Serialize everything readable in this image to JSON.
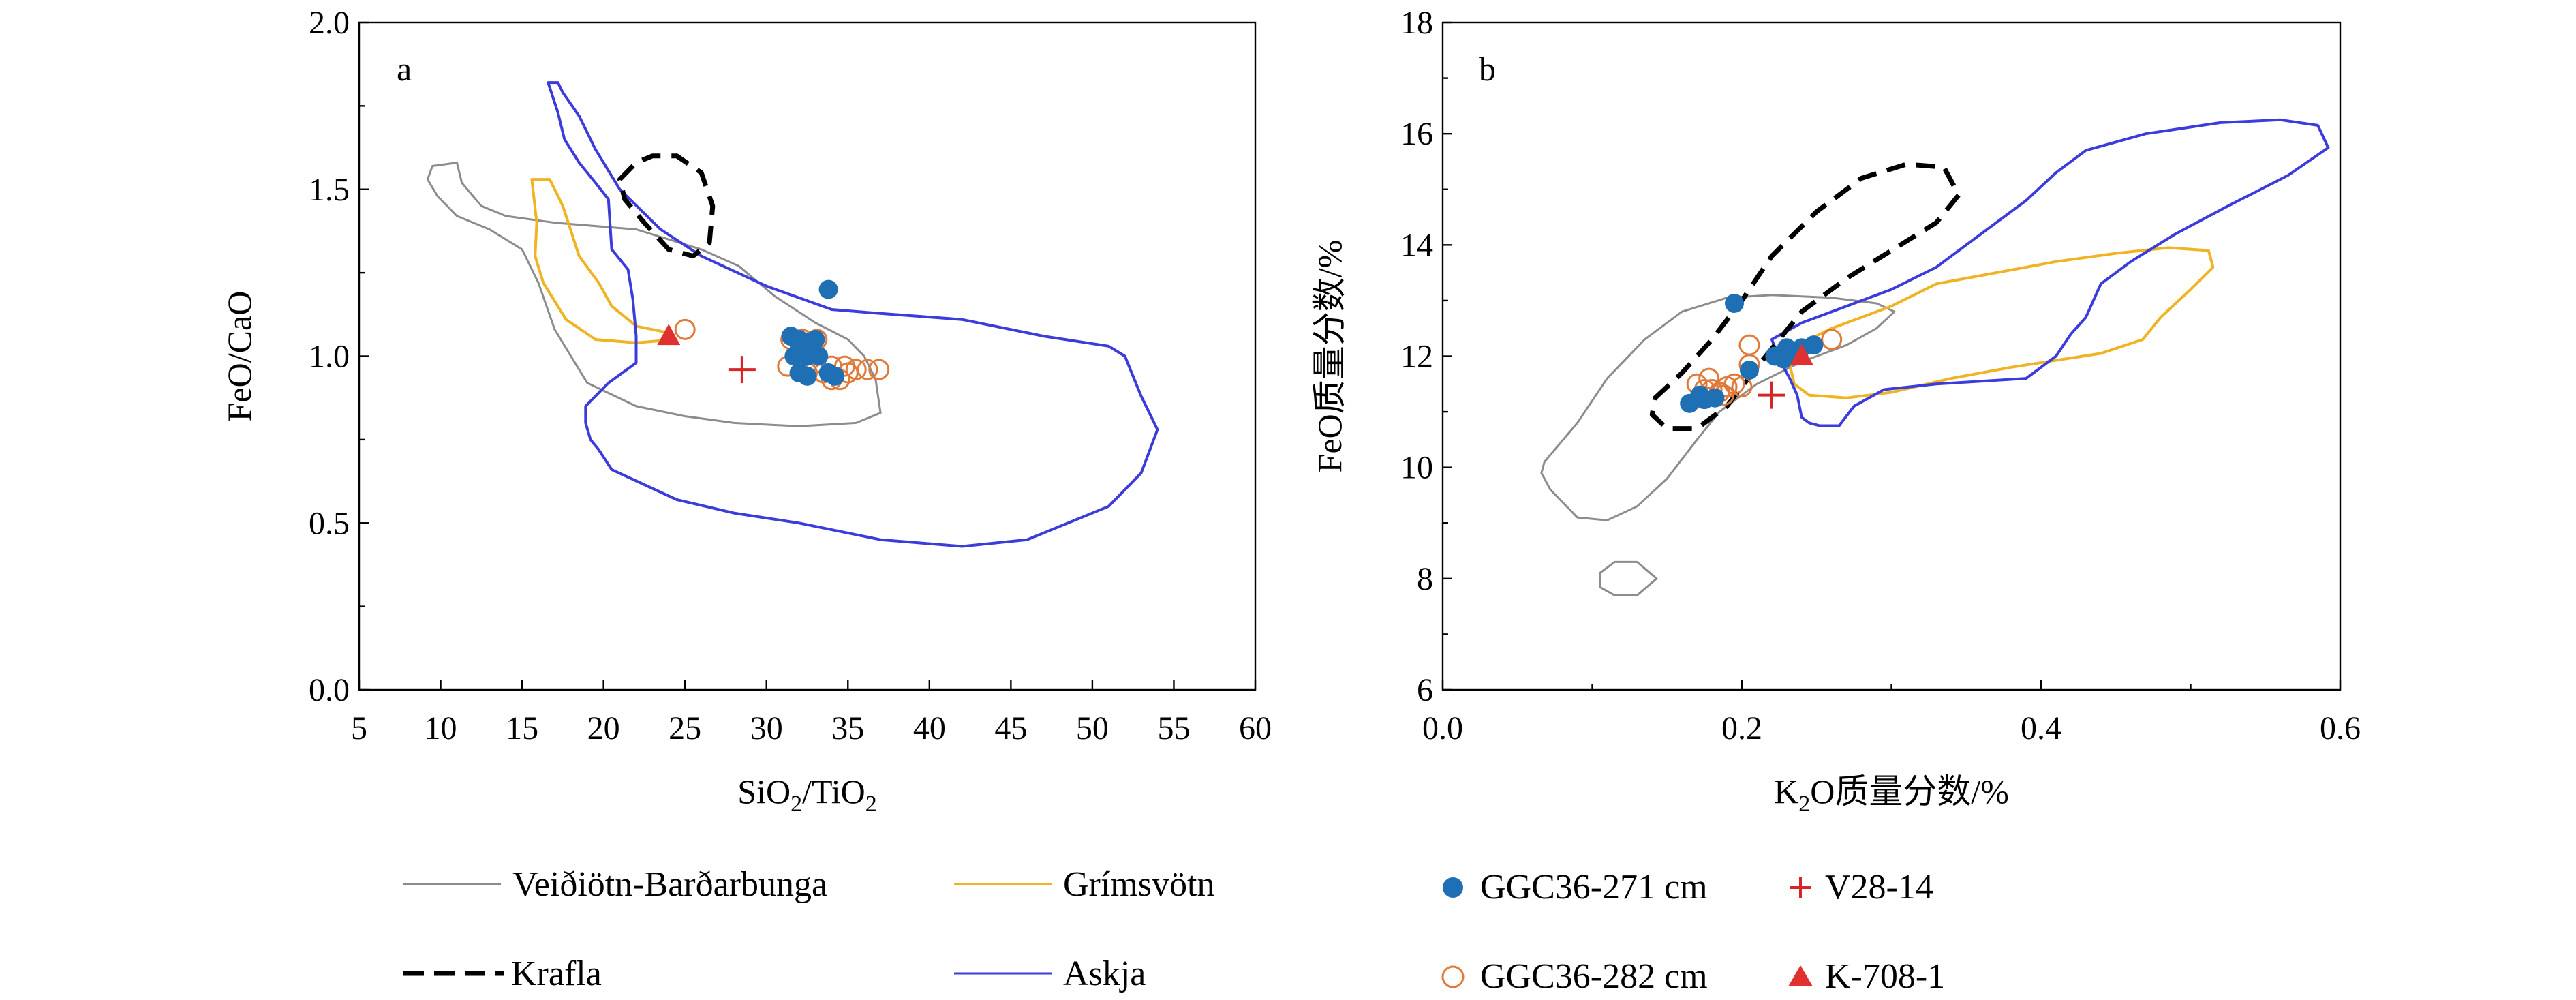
{
  "colors": {
    "veidivotn": "#8c8c8c",
    "grimsvotn": "#f0b323",
    "askja": "#3c3cdc",
    "krafla": "#000000",
    "filled_circle": "#1f6fb4",
    "open_circle": "#e07a3a",
    "v28": "#d62728",
    "k708": "#e03030"
  },
  "chart_data": [
    {
      "type": "scatter",
      "panel": "a",
      "xlabel_main": "SiO",
      "xlabel_sub1": "2",
      "xlabel_mid": "/TiO",
      "xlabel_sub2": "2",
      "ylabel": "FeO/CaO",
      "xlim": [
        5,
        60
      ],
      "ylim": [
        0,
        2
      ],
      "xticks": [
        5,
        10,
        15,
        20,
        25,
        30,
        35,
        40,
        45,
        50,
        55,
        60
      ],
      "yticks": [
        0.0,
        0.5,
        1.0,
        1.5,
        2.0
      ],
      "xtick_labels": [
        "5",
        "10",
        "15",
        "20",
        "25",
        "30",
        "35",
        "40",
        "45",
        "50",
        "55",
        "60"
      ],
      "ytick_labels": [
        "0.0",
        "0.5",
        "1.0",
        "1.5",
        "2.0"
      ],
      "fields": {
        "veidivotn": [
          [
            9.5,
            1.57
          ],
          [
            11,
            1.58
          ],
          [
            11.3,
            1.52
          ],
          [
            12.5,
            1.45
          ],
          [
            14,
            1.42
          ],
          [
            17,
            1.4
          ],
          [
            22,
            1.38
          ],
          [
            24,
            1.35
          ],
          [
            26,
            1.32
          ],
          [
            28.3,
            1.27
          ],
          [
            30.5,
            1.18
          ],
          [
            33,
            1.1
          ],
          [
            35,
            1.05
          ],
          [
            36,
            1.0
          ],
          [
            36.7,
            0.93
          ],
          [
            37,
            0.83
          ],
          [
            35.5,
            0.8
          ],
          [
            32,
            0.79
          ],
          [
            28,
            0.8
          ],
          [
            25,
            0.82
          ],
          [
            22,
            0.85
          ],
          [
            19,
            0.92
          ],
          [
            17,
            1.08
          ],
          [
            16,
            1.22
          ],
          [
            15,
            1.32
          ],
          [
            13,
            1.38
          ],
          [
            11,
            1.42
          ],
          [
            9.8,
            1.48
          ],
          [
            9.2,
            1.53
          ],
          [
            9.5,
            1.57
          ]
        ],
        "grimsvotn": [
          [
            15.6,
            1.53
          ],
          [
            16.7,
            1.53
          ],
          [
            17.5,
            1.45
          ],
          [
            18.5,
            1.3
          ],
          [
            19.7,
            1.22
          ],
          [
            20.5,
            1.15
          ],
          [
            22,
            1.09
          ],
          [
            24,
            1.07
          ],
          [
            24.4,
            1.05
          ],
          [
            22,
            1.04
          ],
          [
            19.5,
            1.05
          ],
          [
            17.7,
            1.11
          ],
          [
            16.3,
            1.22
          ],
          [
            15.8,
            1.3
          ],
          [
            15.9,
            1.4
          ],
          [
            15.6,
            1.53
          ]
        ],
        "askja": [
          [
            16.6,
            1.82
          ],
          [
            17.2,
            1.82
          ],
          [
            17.5,
            1.79
          ],
          [
            18.5,
            1.72
          ],
          [
            19.5,
            1.62
          ],
          [
            21,
            1.5
          ],
          [
            23.5,
            1.38
          ],
          [
            26,
            1.3
          ],
          [
            30,
            1.21
          ],
          [
            34,
            1.14
          ],
          [
            36.5,
            1.13
          ],
          [
            42,
            1.11
          ],
          [
            47,
            1.06
          ],
          [
            51,
            1.03
          ],
          [
            52,
            1.0
          ],
          [
            53,
            0.88
          ],
          [
            54,
            0.78
          ],
          [
            53,
            0.65
          ],
          [
            51,
            0.55
          ],
          [
            46,
            0.45
          ],
          [
            42,
            0.43
          ],
          [
            37,
            0.45
          ],
          [
            32,
            0.5
          ],
          [
            28,
            0.53
          ],
          [
            24.5,
            0.57
          ],
          [
            20.5,
            0.66
          ],
          [
            19.7,
            0.72
          ],
          [
            19.2,
            0.75
          ],
          [
            18.9,
            0.8
          ],
          [
            18.9,
            0.85
          ],
          [
            20.3,
            0.92
          ],
          [
            22,
            0.98
          ],
          [
            22,
            1.06
          ],
          [
            21.8,
            1.17
          ],
          [
            21.5,
            1.26
          ],
          [
            20.5,
            1.32
          ],
          [
            20.3,
            1.47
          ],
          [
            19.5,
            1.52
          ],
          [
            18.5,
            1.58
          ],
          [
            17.6,
            1.65
          ],
          [
            17.2,
            1.73
          ],
          [
            16.6,
            1.82
          ]
        ],
        "krafla": [
          [
            21,
            1.53
          ],
          [
            22,
            1.58
          ],
          [
            23,
            1.6
          ],
          [
            24.5,
            1.6
          ],
          [
            26,
            1.55
          ],
          [
            26.7,
            1.45
          ],
          [
            26.5,
            1.34
          ],
          [
            25.5,
            1.3
          ],
          [
            24,
            1.32
          ],
          [
            22.5,
            1.4
          ],
          [
            21.3,
            1.47
          ],
          [
            21,
            1.53
          ]
        ]
      },
      "filled_circles": [
        [
          31.5,
          1.06
        ],
        [
          32,
          1.05
        ],
        [
          32.5,
          1.04
        ],
        [
          33,
          1.05
        ],
        [
          32,
          1.02
        ],
        [
          31.7,
          1.0
        ],
        [
          32.5,
          1.0
        ],
        [
          33.2,
          1.0
        ],
        [
          32,
          0.95
        ],
        [
          32.5,
          0.94
        ],
        [
          33.8,
          1.2
        ],
        [
          34.2,
          0.94
        ],
        [
          33.8,
          0.95
        ]
      ],
      "open_circles": [
        [
          25,
          1.08
        ],
        [
          31.5,
          1.05
        ],
        [
          32.2,
          1.05
        ],
        [
          33.1,
          1.05
        ],
        [
          32,
          1.0
        ],
        [
          33,
          0.98
        ],
        [
          34,
          0.97
        ],
        [
          34.8,
          0.97
        ],
        [
          35.5,
          0.96
        ],
        [
          36.2,
          0.96
        ],
        [
          36.9,
          0.96
        ],
        [
          33.5,
          0.95
        ],
        [
          34.5,
          0.93
        ],
        [
          32.5,
          0.95
        ],
        [
          31.3,
          0.97
        ],
        [
          34,
          0.93
        ],
        [
          35,
          0.95
        ]
      ],
      "plus": [
        [
          28.5,
          0.96
        ]
      ],
      "triangles": [
        [
          24,
          1.06
        ]
      ]
    },
    {
      "type": "scatter",
      "panel": "b",
      "xlabel_main": "K",
      "xlabel_sub1": "2",
      "xlabel_mid": "O质量分数/%",
      "ylabel": "FeO质量分数/%",
      "xlim": [
        0,
        0.6
      ],
      "ylim": [
        6,
        18
      ],
      "xticks": [
        0.0,
        0.2,
        0.4,
        0.6
      ],
      "yticks": [
        6,
        8,
        10,
        12,
        14,
        16,
        18
      ],
      "xtick_labels": [
        "0.0",
        "0.2",
        "0.4",
        "0.6"
      ],
      "ytick_labels": [
        "6",
        "8",
        "10",
        "12",
        "14",
        "16",
        "18"
      ],
      "fields": {
        "veidivotn": [
          [
            0.068,
            10.1
          ],
          [
            0.09,
            10.8
          ],
          [
            0.11,
            11.6
          ],
          [
            0.135,
            12.3
          ],
          [
            0.16,
            12.8
          ],
          [
            0.19,
            13.05
          ],
          [
            0.22,
            13.1
          ],
          [
            0.26,
            13.05
          ],
          [
            0.29,
            12.95
          ],
          [
            0.302,
            12.8
          ],
          [
            0.29,
            12.5
          ],
          [
            0.27,
            12.2
          ],
          [
            0.24,
            11.9
          ],
          [
            0.21,
            11.5
          ],
          [
            0.185,
            11.0
          ],
          [
            0.17,
            10.5
          ],
          [
            0.15,
            9.8
          ],
          [
            0.13,
            9.3
          ],
          [
            0.11,
            9.05
          ],
          [
            0.09,
            9.1
          ],
          [
            0.072,
            9.6
          ],
          [
            0.066,
            9.9
          ],
          [
            0.068,
            10.1
          ]
        ],
        "veidivotn_small": [
          [
            0.105,
            8.1
          ],
          [
            0.115,
            8.3
          ],
          [
            0.13,
            8.3
          ],
          [
            0.143,
            8.0
          ],
          [
            0.13,
            7.7
          ],
          [
            0.115,
            7.7
          ],
          [
            0.105,
            7.85
          ],
          [
            0.105,
            8.1
          ]
        ],
        "grimsvotn": [
          [
            0.23,
            12.1
          ],
          [
            0.26,
            12.5
          ],
          [
            0.3,
            12.9
          ],
          [
            0.33,
            13.3
          ],
          [
            0.37,
            13.5
          ],
          [
            0.41,
            13.7
          ],
          [
            0.45,
            13.85
          ],
          [
            0.485,
            13.95
          ],
          [
            0.512,
            13.9
          ],
          [
            0.515,
            13.6
          ],
          [
            0.5,
            13.2
          ],
          [
            0.48,
            12.7
          ],
          [
            0.468,
            12.3
          ],
          [
            0.44,
            12.05
          ],
          [
            0.38,
            11.8
          ],
          [
            0.34,
            11.6
          ],
          [
            0.3,
            11.35
          ],
          [
            0.27,
            11.25
          ],
          [
            0.245,
            11.3
          ],
          [
            0.235,
            11.5
          ],
          [
            0.23,
            12.1
          ]
        ],
        "askja": [
          [
            0.22,
            12.3
          ],
          [
            0.24,
            12.6
          ],
          [
            0.27,
            12.9
          ],
          [
            0.3,
            13.2
          ],
          [
            0.33,
            13.6
          ],
          [
            0.36,
            14.2
          ],
          [
            0.39,
            14.8
          ],
          [
            0.41,
            15.3
          ],
          [
            0.43,
            15.7
          ],
          [
            0.47,
            16.0
          ],
          [
            0.52,
            16.2
          ],
          [
            0.56,
            16.25
          ],
          [
            0.585,
            16.15
          ],
          [
            0.592,
            15.75
          ],
          [
            0.565,
            15.25
          ],
          [
            0.525,
            14.7
          ],
          [
            0.49,
            14.2
          ],
          [
            0.46,
            13.7
          ],
          [
            0.44,
            13.3
          ],
          [
            0.43,
            12.7
          ],
          [
            0.42,
            12.4
          ],
          [
            0.41,
            12.0
          ],
          [
            0.39,
            11.6
          ],
          [
            0.36,
            11.55
          ],
          [
            0.33,
            11.5
          ],
          [
            0.295,
            11.4
          ],
          [
            0.275,
            11.1
          ],
          [
            0.265,
            10.75
          ],
          [
            0.252,
            10.75
          ],
          [
            0.245,
            10.8
          ],
          [
            0.24,
            10.9
          ],
          [
            0.237,
            11.3
          ],
          [
            0.232,
            11.6
          ],
          [
            0.226,
            11.9
          ],
          [
            0.22,
            12.3
          ]
        ],
        "krafla": [
          [
            0.142,
            11.25
          ],
          [
            0.16,
            11.7
          ],
          [
            0.18,
            12.3
          ],
          [
            0.2,
            13.0
          ],
          [
            0.22,
            13.8
          ],
          [
            0.25,
            14.6
          ],
          [
            0.28,
            15.2
          ],
          [
            0.31,
            15.45
          ],
          [
            0.335,
            15.4
          ],
          [
            0.345,
            14.9
          ],
          [
            0.33,
            14.4
          ],
          [
            0.3,
            13.9
          ],
          [
            0.27,
            13.4
          ],
          [
            0.24,
            12.8
          ],
          [
            0.21,
            11.8
          ],
          [
            0.19,
            11.1
          ],
          [
            0.17,
            10.7
          ],
          [
            0.15,
            10.7
          ],
          [
            0.14,
            10.95
          ],
          [
            0.142,
            11.25
          ]
        ]
      },
      "filled_circles": [
        [
          0.165,
          11.15
        ],
        [
          0.172,
          11.3
        ],
        [
          0.175,
          11.22
        ],
        [
          0.182,
          11.25
        ],
        [
          0.195,
          12.95
        ],
        [
          0.205,
          11.75
        ],
        [
          0.222,
          12.0
        ],
        [
          0.23,
          12.15
        ],
        [
          0.228,
          11.95
        ],
        [
          0.232,
          12.0
        ],
        [
          0.24,
          12.15
        ],
        [
          0.248,
          12.2
        ]
      ],
      "open_circles": [
        [
          0.17,
          11.5
        ],
        [
          0.175,
          11.4
        ],
        [
          0.18,
          11.4
        ],
        [
          0.185,
          11.35
        ],
        [
          0.19,
          11.45
        ],
        [
          0.195,
          11.5
        ],
        [
          0.2,
          11.45
        ],
        [
          0.178,
          11.6
        ],
        [
          0.188,
          11.3
        ],
        [
          0.205,
          12.2
        ],
        [
          0.205,
          11.85
        ],
        [
          0.26,
          12.3
        ],
        [
          0.172,
          11.25
        ]
      ],
      "plus": [
        [
          0.22,
          11.3
        ]
      ],
      "triangles": [
        [
          0.24,
          12.0
        ]
      ]
    }
  ],
  "panel_a": {
    "label": "a"
  },
  "panel_b": {
    "label": "b"
  },
  "legend": {
    "veidivotn": "Veiðiötn-Barðarbunga",
    "grimsvotn": "Grímsvötn",
    "krafla": "Krafla",
    "askja": "Askja",
    "ggc271": "GGC36-271 cm",
    "v28": "V28-14",
    "ggc282": "GGC36-282 cm",
    "k708": "K-708-1"
  }
}
